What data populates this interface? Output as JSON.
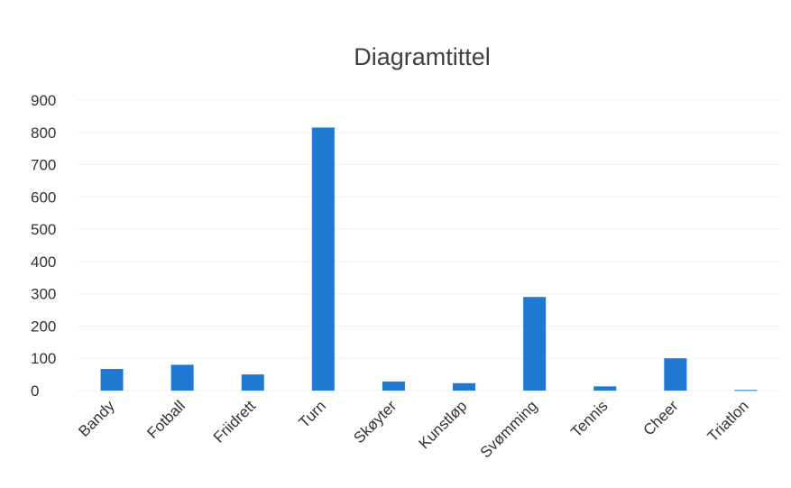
{
  "chart_data": {
    "type": "bar",
    "title": "Diagramtittel",
    "categories": [
      "Bandy",
      "Fotball",
      "Friidrett",
      "Turn",
      "Skøyter",
      "Kunstløp",
      "Svømming",
      "Tennis",
      "Cheer",
      "Triatlon"
    ],
    "values": [
      67,
      80,
      50,
      815,
      28,
      23,
      290,
      13,
      100,
      2
    ],
    "xlabel": "",
    "ylabel": "",
    "ylim": [
      0,
      900
    ],
    "yticks": [
      "0",
      "100",
      "200",
      "300",
      "400",
      "500",
      "600",
      "700",
      "800",
      "900"
    ],
    "grid": true,
    "legend": "none",
    "bar_color": "#1f78d1"
  }
}
